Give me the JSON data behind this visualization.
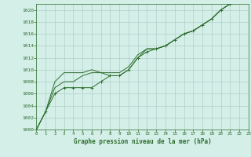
{
  "title": "Graphe pression niveau de la mer (hPa)",
  "bg_color": "#d4eee8",
  "grid_color": "#b0cfc8",
  "line_color": "#2d6e2d",
  "xlim": [
    0,
    23
  ],
  "ylim": [
    1000,
    1021
  ],
  "xticks": [
    0,
    1,
    2,
    3,
    4,
    5,
    6,
    7,
    8,
    9,
    10,
    11,
    12,
    13,
    14,
    15,
    16,
    17,
    18,
    19,
    20,
    21,
    22,
    23
  ],
  "yticks": [
    1000,
    1002,
    1004,
    1006,
    1008,
    1010,
    1012,
    1014,
    1016,
    1018,
    1020
  ],
  "line1_x": [
    0,
    1,
    2,
    3,
    4,
    5,
    6,
    7,
    8,
    9,
    10,
    11,
    12,
    13,
    14,
    15,
    16,
    17,
    18,
    19,
    20,
    21,
    22,
    23
  ],
  "line1_y": [
    1000,
    1003,
    1006,
    1007,
    1007,
    1007,
    1007,
    1008,
    1009,
    1009,
    1010,
    1012,
    1013,
    1013.5,
    1014,
    1015,
    1016,
    1016.5,
    1017.5,
    1018.5,
    1020,
    1021,
    1021.5,
    1022
  ],
  "line2_x": [
    0,
    1,
    2,
    3,
    4,
    5,
    6,
    7,
    8,
    9,
    10,
    11,
    12,
    13,
    14,
    15,
    16,
    17,
    18,
    19,
    20,
    21,
    22,
    23
  ],
  "line2_y": [
    1000,
    1003,
    1008,
    1009.5,
    1009.5,
    1009.5,
    1010,
    1009.5,
    1009.5,
    1009.5,
    1010.5,
    1012.5,
    1013.5,
    1013.5,
    1014,
    1015,
    1016,
    1016.5,
    1017.5,
    1018.5,
    1020,
    1021,
    1021.5,
    1022
  ],
  "line3_x": [
    0,
    1,
    2,
    3,
    4,
    5,
    6,
    7,
    8,
    9,
    10,
    11,
    12,
    13,
    14,
    15,
    16,
    17,
    18,
    19,
    20,
    21,
    22,
    23
  ],
  "line3_y": [
    1000,
    1003,
    1007,
    1008,
    1008,
    1009,
    1009.5,
    1009.5,
    1009,
    1009,
    1010,
    1012,
    1013.5,
    1013.5,
    1014,
    1015,
    1016,
    1016.5,
    1017.5,
    1018.5,
    1020,
    1021,
    1021.5,
    1022
  ],
  "marker_x": [
    0,
    1,
    2,
    3,
    4,
    5,
    6,
    7,
    8,
    9,
    10,
    11,
    12,
    13,
    14,
    15,
    16,
    17,
    18,
    19,
    20,
    21,
    22,
    23
  ],
  "marker_y": [
    1000,
    1003,
    1006,
    1007,
    1007,
    1007,
    1007,
    1008,
    1009,
    1009,
    1010,
    1012,
    1013,
    1013.5,
    1014,
    1015,
    1016,
    1016.5,
    1017.5,
    1018.5,
    1020,
    1021,
    1021.5,
    1022
  ]
}
